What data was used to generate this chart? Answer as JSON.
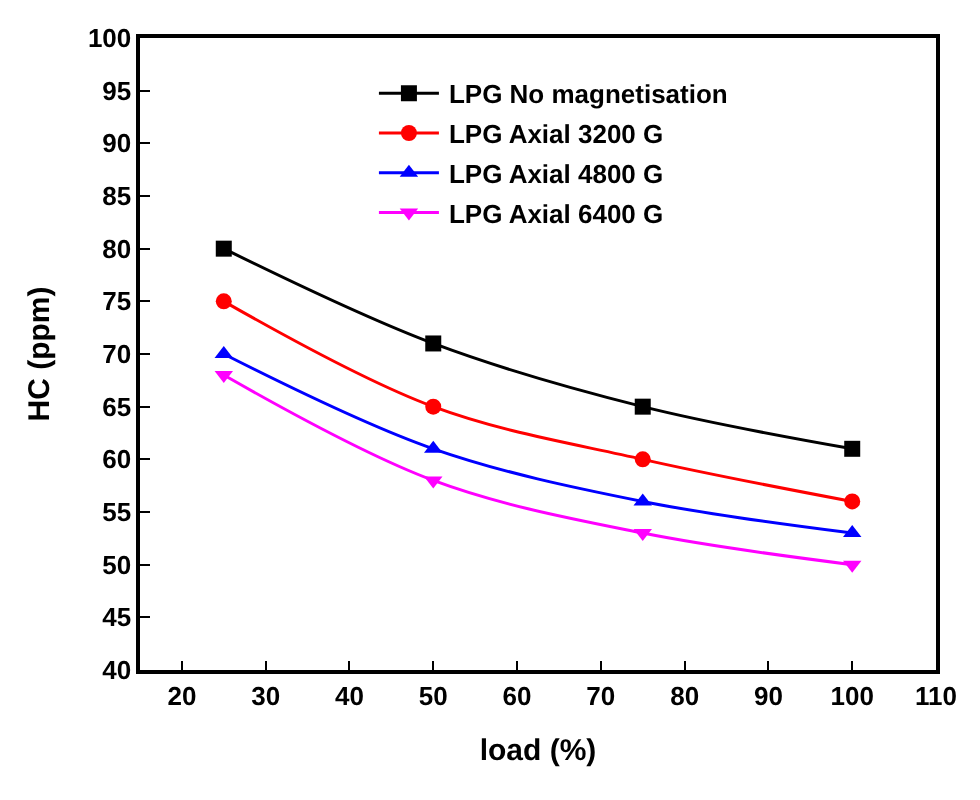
{
  "chart_data": {
    "type": "line",
    "xlabel": "load (%)",
    "ylabel": "HC (ppm)",
    "x": [
      25,
      50,
      75,
      100
    ],
    "series": [
      {
        "name": "LPG No magnetisation",
        "color": "#000000",
        "marker": "square",
        "values": [
          80,
          71,
          65,
          61
        ]
      },
      {
        "name": "LPG Axial 3200 G",
        "color": "#ff0000",
        "marker": "circle",
        "values": [
          75,
          65,
          60,
          56
        ]
      },
      {
        "name": "LPG Axial 4800 G",
        "color": "#0000ff",
        "marker": "triangle",
        "values": [
          70,
          61,
          56,
          53
        ]
      },
      {
        "name": "LPG Axial 6400 G",
        "color": "#ff00ff",
        "marker": "triangle-down",
        "values": [
          68,
          58,
          53,
          50
        ]
      }
    ],
    "xlim": [
      15,
      110
    ],
    "xticks": [
      20,
      30,
      40,
      50,
      60,
      70,
      80,
      90,
      100,
      110
    ],
    "ylim": [
      40,
      100
    ],
    "yticks": [
      40,
      45,
      50,
      55,
      60,
      65,
      70,
      75,
      80,
      85,
      90,
      95,
      100
    ],
    "legend": "top",
    "line_style": "solid"
  }
}
